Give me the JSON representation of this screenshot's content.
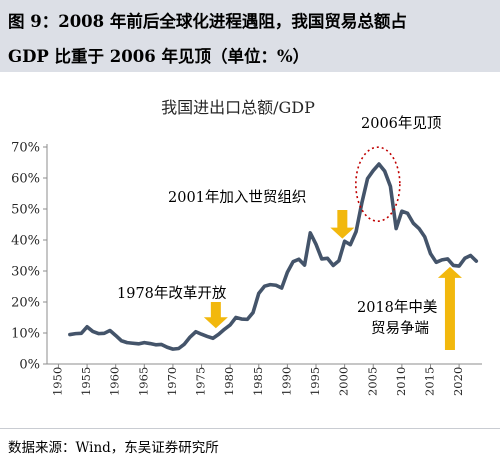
{
  "header": {
    "line1": "图 9：2008 年前后全球化进程遇阻，我国贸易总额占",
    "line2": "GDP 比重于 2006 年见顶（单位：%）"
  },
  "footer": {
    "source": "数据来源：Wind，东吴证券研究所"
  },
  "chart_data": {
    "type": "line",
    "title": "我国进出口总额/GDP",
    "xlabel": "",
    "ylabel": "",
    "x_ticks": [
      1950,
      1955,
      1960,
      1965,
      1970,
      1975,
      1980,
      1985,
      1990,
      1995,
      2000,
      2005,
      2010,
      2015,
      2020
    ],
    "y_ticks": [
      "0%",
      "10%",
      "20%",
      "30%",
      "40%",
      "50%",
      "60%",
      "70%"
    ],
    "xlim": [
      1948,
      2024
    ],
    "ylim": [
      0,
      70
    ],
    "grid": false,
    "line_color": "#44546a",
    "arrow_color": "#f2b80d",
    "ellipse_color": "#c00000",
    "series": [
      {
        "name": "",
        "points": [
          [
            1952,
            9.5
          ],
          [
            1953,
            9.8
          ],
          [
            1954,
            9.9
          ],
          [
            1955,
            12.0
          ],
          [
            1956,
            10.5
          ],
          [
            1957,
            9.8
          ],
          [
            1958,
            9.9
          ],
          [
            1959,
            10.8
          ],
          [
            1960,
            9.2
          ],
          [
            1961,
            7.5
          ],
          [
            1962,
            6.9
          ],
          [
            1963,
            6.7
          ],
          [
            1964,
            6.5
          ],
          [
            1965,
            6.9
          ],
          [
            1966,
            6.6
          ],
          [
            1967,
            6.2
          ],
          [
            1968,
            6.3
          ],
          [
            1969,
            5.4
          ],
          [
            1970,
            4.8
          ],
          [
            1971,
            5.0
          ],
          [
            1972,
            6.4
          ],
          [
            1973,
            8.7
          ],
          [
            1974,
            10.4
          ],
          [
            1975,
            9.6
          ],
          [
            1976,
            8.9
          ],
          [
            1977,
            8.3
          ],
          [
            1978,
            9.6
          ],
          [
            1979,
            11.2
          ],
          [
            1980,
            12.6
          ],
          [
            1981,
            15.0
          ],
          [
            1982,
            14.5
          ],
          [
            1983,
            14.4
          ],
          [
            1984,
            16.6
          ],
          [
            1985,
            22.8
          ],
          [
            1986,
            25.1
          ],
          [
            1987,
            25.6
          ],
          [
            1988,
            25.4
          ],
          [
            1989,
            24.5
          ],
          [
            1990,
            29.6
          ],
          [
            1991,
            33.0
          ],
          [
            1992,
            33.8
          ],
          [
            1993,
            31.9
          ],
          [
            1994,
            42.3
          ],
          [
            1995,
            38.6
          ],
          [
            1996,
            33.9
          ],
          [
            1997,
            34.1
          ],
          [
            1998,
            31.8
          ],
          [
            1999,
            33.3
          ],
          [
            2000,
            39.6
          ],
          [
            2001,
            38.5
          ],
          [
            2002,
            42.7
          ],
          [
            2003,
            51.9
          ],
          [
            2004,
            59.8
          ],
          [
            2005,
            62.4
          ],
          [
            2006,
            64.5
          ],
          [
            2007,
            62.2
          ],
          [
            2008,
            57.3
          ],
          [
            2009,
            43.7
          ],
          [
            2010,
            49.3
          ],
          [
            2011,
            48.6
          ],
          [
            2012,
            45.4
          ],
          [
            2013,
            43.7
          ],
          [
            2014,
            41.0
          ],
          [
            2015,
            35.6
          ],
          [
            2016,
            32.8
          ],
          [
            2017,
            33.6
          ],
          [
            2018,
            33.9
          ],
          [
            2019,
            31.8
          ],
          [
            2020,
            31.6
          ],
          [
            2021,
            34.1
          ],
          [
            2022,
            35.0
          ],
          [
            2023,
            33.2
          ]
        ]
      }
    ],
    "annotations": [
      {
        "id": "1978",
        "text": "1978年改革开放",
        "x": 1978,
        "y": 9.6
      },
      {
        "id": "2001",
        "text": "2001年加入世贸组织",
        "x": 2001,
        "y": 38.5
      },
      {
        "id": "2006",
        "text": "2006年见顶",
        "x": 2006,
        "y": 64.5
      },
      {
        "id": "2018",
        "text": [
          "2018年中美",
          "贸易争端"
        ],
        "x": 2018,
        "y": 33.9
      }
    ]
  }
}
